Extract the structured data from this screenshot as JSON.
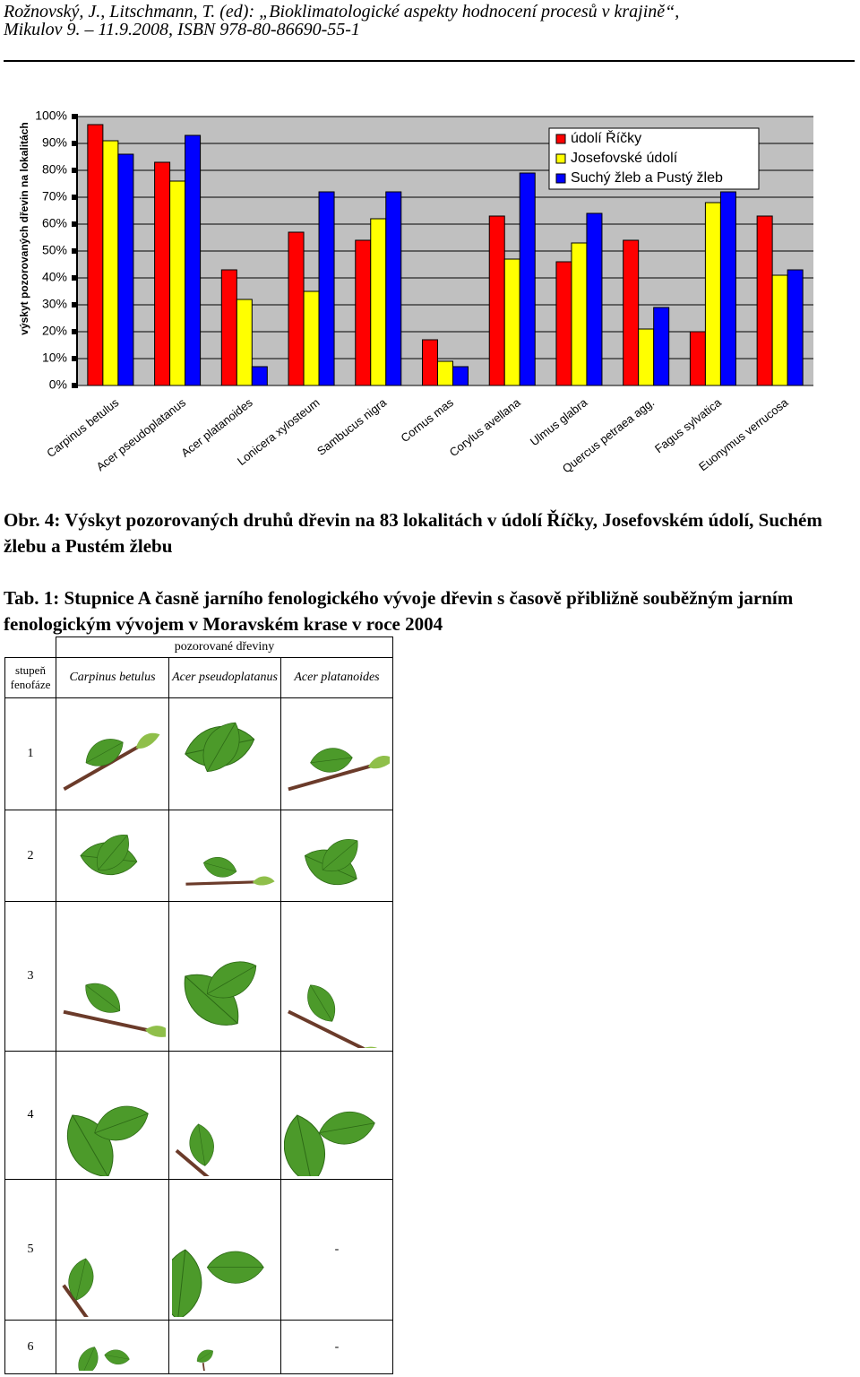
{
  "header": {
    "line1": "Rožnovský, J., Litschmann, T. (ed): „Bioklimatologické aspekty hodnocení procesů v krajině“,",
    "line2": "Mikulov 9. – 11.9.2008, ISBN 978-80-86690-55-1"
  },
  "chart_data": {
    "type": "bar",
    "y_label": "výskyt pozorovaných dřevin na lokalitách",
    "categories": [
      "Carpinus betulus",
      "Acer pseudoplatanus",
      "Acer platanoides",
      "Lonicera xylosteum",
      "Sambucus nigra",
      "Cornus mas",
      "Corylus avellana",
      "Ulmus glabra",
      "Quercus petraea agg.",
      "Fagus sylvatica",
      "Euonymus verrucosa"
    ],
    "series": [
      {
        "name": "údolí Říčky",
        "color": "#ff0000",
        "values": [
          97,
          83,
          43,
          57,
          54,
          17,
          63,
          46,
          54,
          20,
          63
        ]
      },
      {
        "name": "Josefovské údolí",
        "color": "#ffff00",
        "values": [
          91,
          76,
          32,
          35,
          62,
          9,
          47,
          53,
          21,
          68,
          41
        ]
      },
      {
        "name": "Suchý žleb a Pustý žleb",
        "color": "#0000ff",
        "values": [
          86,
          93,
          7,
          72,
          72,
          7,
          79,
          64,
          29,
          72,
          43
        ]
      }
    ],
    "ylim": [
      0,
      100
    ],
    "yticks": [
      {
        "value": 0,
        "label": "0%"
      },
      {
        "value": 10,
        "label": "10%"
      },
      {
        "value": 20,
        "label": "20%"
      },
      {
        "value": 30,
        "label": "30%"
      },
      {
        "value": 40,
        "label": "40%"
      },
      {
        "value": 50,
        "label": "50%"
      },
      {
        "value": 60,
        "label": "60%"
      },
      {
        "value": 70,
        "label": "70%"
      },
      {
        "value": 80,
        "label": "80%"
      },
      {
        "value": 90,
        "label": "90%"
      },
      {
        "value": 100,
        "label": "100%"
      }
    ],
    "grid": true,
    "legend": "top-right"
  },
  "figure_caption": "Obr. 4: Výskyt pozorovaných druhů dřevin na 83 lokalitách v údolí Říčky, Josefovském údolí,  Suchém žlebu a Pustém žlebu",
  "table_caption": "Tab. 1: Stupnice A časně jarního fenologického vývoje dřevin s časově přibližně souběžným jarním fenologickým vývojem v Moravském krase v roce 2004",
  "table": {
    "group_header": "pozorované dřeviny",
    "columns": [
      "stupeň fenofáze",
      "Carpinus betulus",
      "Acer pseudoplatanus",
      "Acer platanoides"
    ],
    "rows": [
      {
        "stage": "1"
      },
      {
        "stage": "2"
      },
      {
        "stage": "3"
      },
      {
        "stage": "4"
      },
      {
        "stage": "5",
        "acer_platanoides": "-"
      },
      {
        "stage": "6",
        "acer_platanoides": "-"
      }
    ]
  }
}
